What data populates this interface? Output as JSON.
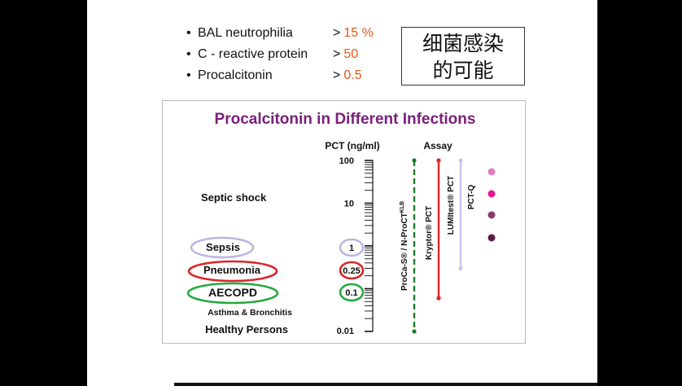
{
  "bullets": [
    {
      "name": "BAL neutrophilia",
      "op": ">",
      "value": "15 %"
    },
    {
      "name": "C - reactive protein",
      "op": ">",
      "value": "50"
    },
    {
      "name": "Procalcitonin",
      "op": ">",
      "value": "0.5"
    }
  ],
  "bullet_glyph": "•",
  "cn_box": {
    "line1": "细菌感染",
    "line2": "的可能"
  },
  "panel": {
    "title": "Procalcitonin in Different Infections",
    "pct_header": "PCT (ng/ml)",
    "assay_header": "Assay",
    "scale_labels": [
      "100",
      "10",
      "1",
      "0.25",
      "0.1",
      "0.01"
    ],
    "conditions": [
      {
        "label": "Septic shock",
        "outline": null
      },
      {
        "label": "Sepsis",
        "outline": "#b9b8e0"
      },
      {
        "label": "Pneumonia",
        "outline": "#d9262a"
      },
      {
        "label": "AECOPD",
        "outline": "#27a843"
      },
      {
        "label": "Asthma & Bronchitis",
        "outline": null
      },
      {
        "label": "Healthy Persons",
        "outline": null
      }
    ],
    "assays": [
      {
        "name": "ProCa-S® / N-ProCT",
        "sup": "KLB",
        "color": "#1f7a2a",
        "style": "dashed",
        "from": 0.01,
        "to": 100
      },
      {
        "name": "Kryptor® PCT",
        "color": "#d9262a",
        "style": "solid",
        "from": 0.06,
        "to": 100
      },
      {
        "name": "LUMItest® PCT",
        "color": "#c6c5ea",
        "style": "solid",
        "from": 0.3,
        "to": 100
      },
      {
        "name": "PCT-Q",
        "color": "#7a3b6b",
        "style": "dots",
        "points": [
          {
            "value": 50,
            "color": "#e07fc0"
          },
          {
            "value": 15,
            "color": "#e9168c"
          },
          {
            "value": 5,
            "color": "#8a3a6c"
          },
          {
            "value": 2,
            "color": "#5a1a4a"
          }
        ]
      }
    ],
    "colors": {
      "title": "#7a1f7a",
      "text": "#111111"
    }
  }
}
